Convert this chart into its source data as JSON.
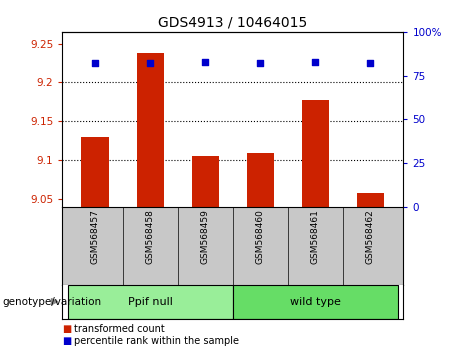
{
  "title": "GDS4913 / 10464015",
  "samples": [
    "GSM568457",
    "GSM568458",
    "GSM568459",
    "GSM568460",
    "GSM568461",
    "GSM568462"
  ],
  "transformed_counts": [
    9.13,
    9.238,
    9.105,
    9.11,
    9.178,
    9.058
  ],
  "percentile_ranks": [
    82,
    82,
    83,
    82,
    83,
    82
  ],
  "ylim_left": [
    9.04,
    9.265
  ],
  "ylim_right": [
    0,
    100
  ],
  "yticks_left": [
    9.05,
    9.1,
    9.15,
    9.2,
    9.25
  ],
  "yticks_right": [
    0,
    25,
    50,
    75,
    100
  ],
  "ytick_labels_left": [
    "9.05",
    "9.1",
    "9.15",
    "9.2",
    "9.25"
  ],
  "ytick_labels_right": [
    "0",
    "25",
    "50",
    "75",
    "100%"
  ],
  "bar_color": "#cc2200",
  "dot_color": "#0000cc",
  "bar_bottom": 9.04,
  "group_label": "genotype/variation",
  "group1_label": "Ppif null",
  "group2_label": "wild type",
  "group1_color": "#99ee99",
  "group2_color": "#66dd66",
  "legend_bar_label": "transformed count",
  "legend_dot_label": "percentile rank within the sample",
  "names_bg": "#c8c8c8",
  "dotted_yticks": [
    9.1,
    9.15,
    9.2
  ]
}
